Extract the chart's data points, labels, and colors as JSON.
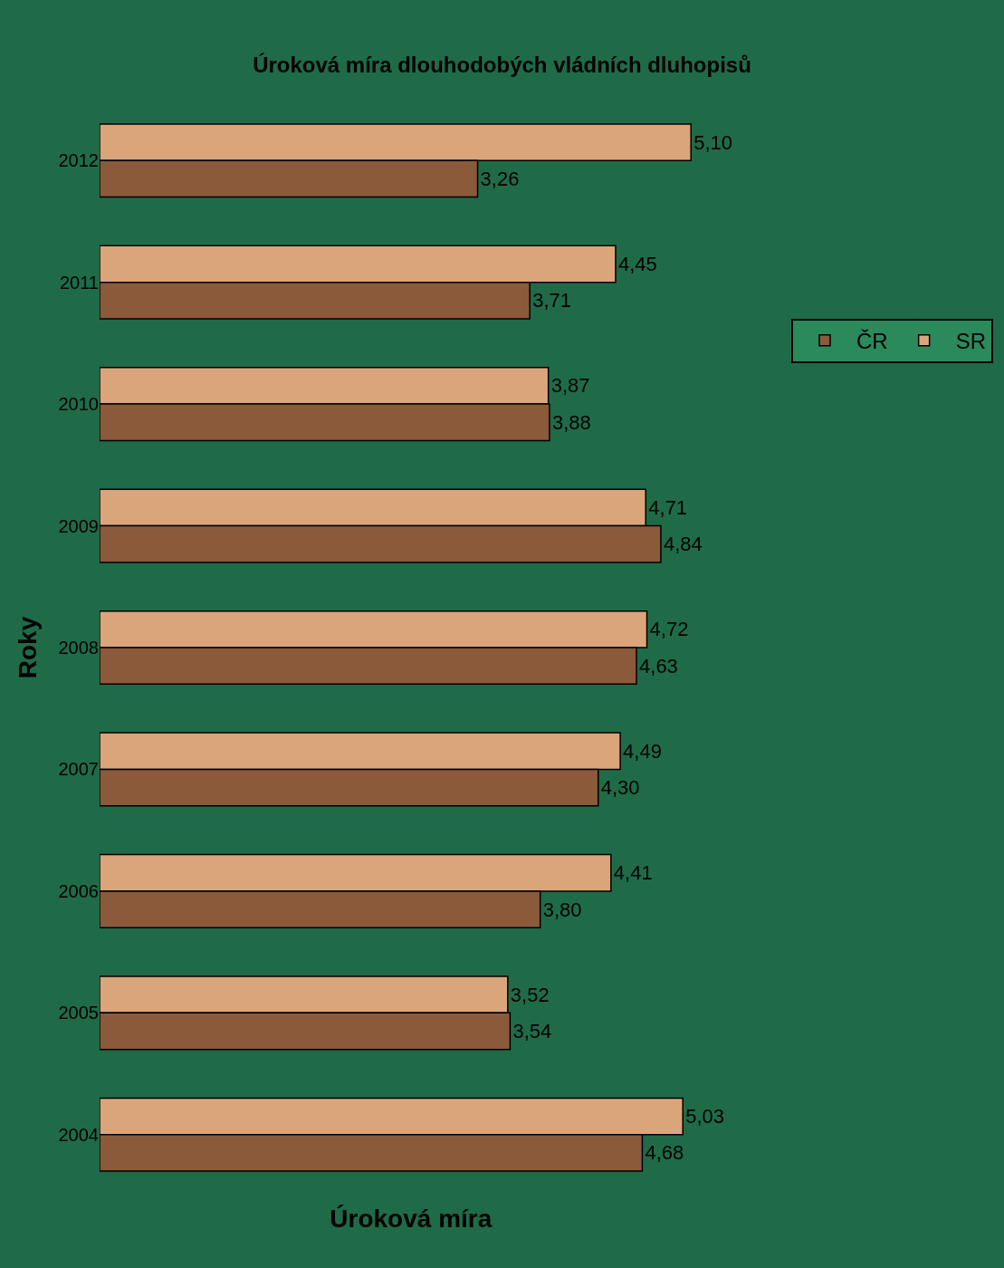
{
  "chart_data": {
    "type": "bar",
    "orientation": "horizontal",
    "title": "Úroková míra dlouhodobých vládních dluhopisů",
    "xlabel": "Úroková míra",
    "ylabel": "Roky",
    "categories": [
      "2012",
      "2011",
      "2010",
      "2009",
      "2008",
      "2007",
      "2006",
      "2005",
      "2004"
    ],
    "series": [
      {
        "name": "ČR",
        "color": "#8b5a3a",
        "values": [
          3.26,
          3.71,
          3.88,
          4.84,
          4.63,
          4.3,
          3.8,
          3.54,
          4.68
        ],
        "value_labels": [
          "3,26",
          "3,71",
          "3,88",
          "4,84",
          "4,63",
          "4,30",
          "3,80",
          "3,54",
          "4,68"
        ]
      },
      {
        "name": "SR",
        "color": "#dba57c",
        "values": [
          5.1,
          4.45,
          3.87,
          4.71,
          4.72,
          4.49,
          4.41,
          3.52,
          5.03
        ],
        "value_labels": [
          "5,10",
          "4,45",
          "3,87",
          "4,71",
          "4,72",
          "4,49",
          "4,41",
          "3,52",
          "5,03"
        ]
      }
    ],
    "legend": "right",
    "grid": false
  }
}
